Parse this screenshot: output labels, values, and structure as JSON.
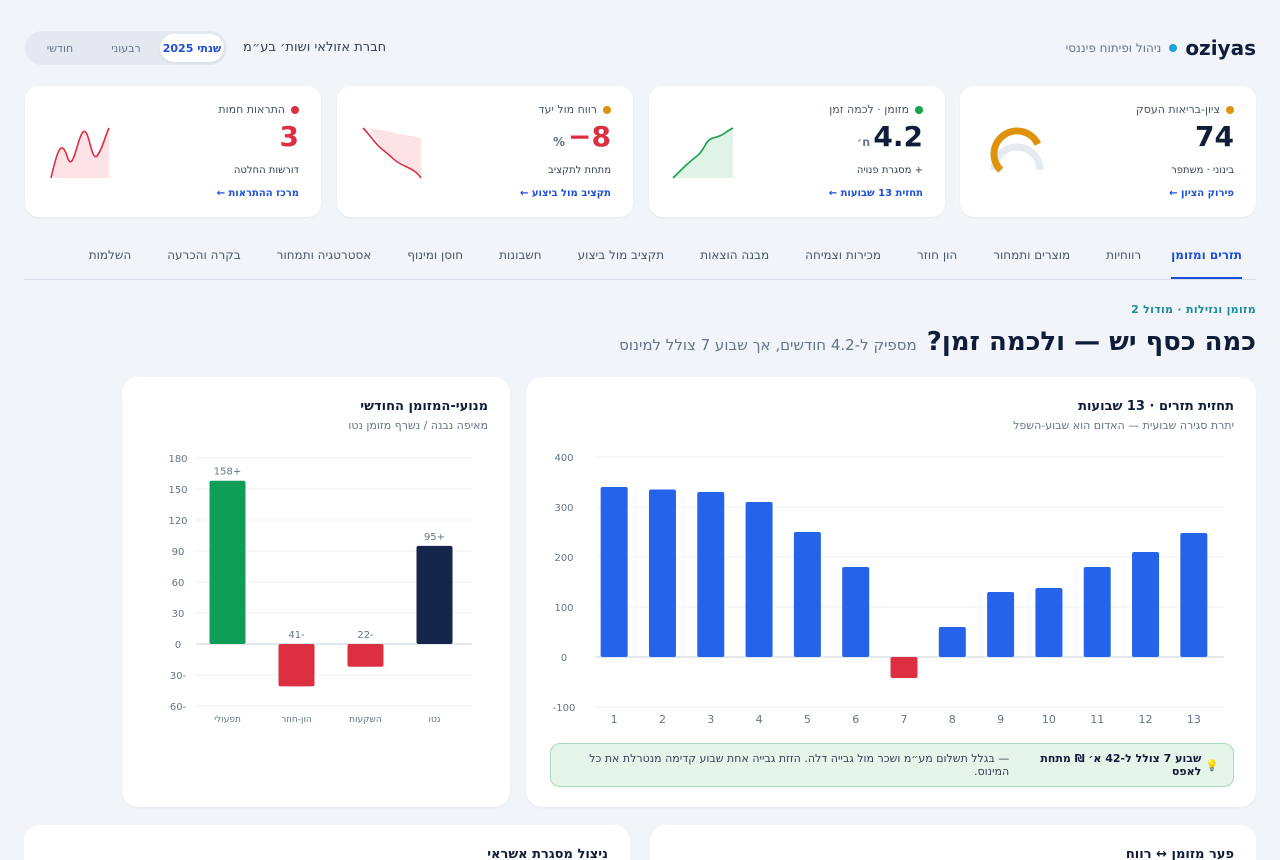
{
  "header": {
    "brand": "oziyas",
    "brand_sub": "ניהול ופיתוח פיננסי",
    "company": "חברת אזולאי ושות׳ בע״מ",
    "periods": [
      "חודשי",
      "רבעוני",
      "שנתי 2025"
    ],
    "active_period": "שנתי 2025"
  },
  "kpis": [
    {
      "label": "ציון-בריאות העסק",
      "value": "74",
      "unit": "",
      "note": "בינוני · משתפר",
      "link": "פירוק הציון ←",
      "dot_color": "#e0920c",
      "value_color": "#0f1d3a",
      "gauge_fraction": 0.74
    },
    {
      "label": "מזומן · לכמה זמן",
      "value": "4.2",
      "unit": "ח׳",
      "note": "+ מסגרת פנויה",
      "link": "תחזית 13 שבועות ←",
      "dot_color": "#16a34a",
      "value_color": "#0f1d3a"
    },
    {
      "label": "רווח מול יעד",
      "value": "8−",
      "unit": "%",
      "note": "מתחת לתקציב",
      "link": "תקציב מול ביצוע ←",
      "dot_color": "#e0920c",
      "value_color": "#dc2f42"
    },
    {
      "label": "התראות חמות",
      "value": "3",
      "unit": "",
      "note": "דורשות החלטה",
      "link": "מרכז ההתראות ←",
      "dot_color": "#dc2f42",
      "value_color": "#dc2f42"
    }
  ],
  "tabs": [
    "תזרים ומזומן",
    "רווחיות",
    "מוצרים ותמחור",
    "הון חוזר",
    "מכירות וצמיחה",
    "מבנה הוצאות",
    "תקציב מול ביצוע",
    "חשבונות",
    "חוסן ומינוף",
    "אסטרטגיה ותמחור",
    "בקרה והכרעה",
    "השלמות"
  ],
  "active_tab": "תזרים ומזומן",
  "section": {
    "kicker": "מזומן ונזילות · מודול 2",
    "title": "כמה כסף יש — ולכמה זמן?",
    "subtitle": "מספיק ל-4.2 חודשים, אך שבוע 7 צולל למינוס"
  },
  "forecast_panel": {
    "title": "תחזית תזרים · 13 שבועות",
    "subtitle": "יתרת סגירה שבועית — האדום הוא שבוע-השפל",
    "insight_icon": "💡",
    "insight_bold": "שבוע 7 צולל ל-42 א׳ ₪ מתחת לאפס",
    "insight_text": "— בגלל תשלום מע״מ ושכר מול גבייה דלה. הזזת גבייה אחת שבוע קדימה מנטרלת את כל המינוס."
  },
  "drivers_panel": {
    "title": "מנועי-המזומן החודשי",
    "subtitle": "מאיפה נבנה / נשרף מזומן נטו"
  },
  "bottom_cards": [
    "פער מזומן ↔ רווח",
    "ניצול מסגרת אשראי"
  ],
  "chart_data": [
    {
      "type": "bar",
      "title": "תחזית תזרים · 13 שבועות",
      "categories": [
        "1",
        "2",
        "3",
        "4",
        "5",
        "6",
        "7",
        "8",
        "9",
        "10",
        "11",
        "12",
        "13"
      ],
      "values": [
        340,
        335,
        330,
        310,
        250,
        180,
        -42,
        60,
        130,
        138,
        180,
        210,
        248
      ],
      "ylim": [
        -100,
        400
      ],
      "yticks": [
        "400",
        "300",
        "200",
        "100",
        "0",
        "-100"
      ],
      "ytick_values": [
        400,
        300,
        200,
        100,
        0,
        -100
      ],
      "colors": {
        "positive": "#2563eb",
        "negative": "#dc2f42"
      },
      "grid": true
    },
    {
      "type": "bar",
      "title": "מנועי-המזומן החודשי",
      "categories": [
        "תפעולי",
        "הון-חוזר",
        "השקעות",
        "נטו"
      ],
      "values": [
        158,
        -41,
        -22,
        95
      ],
      "data_labels": [
        "158+",
        "41-",
        "22-",
        "95+"
      ],
      "ylim": [
        -60,
        180
      ],
      "yticks": [
        "180",
        "150",
        "120",
        "90",
        "60",
        "30",
        "0",
        "30-",
        "60-"
      ],
      "ytick_values": [
        180,
        150,
        120,
        90,
        60,
        30,
        0,
        -30,
        -60
      ],
      "colors": [
        "#0f9d58",
        "#dc2f42",
        "#dc2f42",
        "#14274a"
      ],
      "grid": true
    }
  ]
}
